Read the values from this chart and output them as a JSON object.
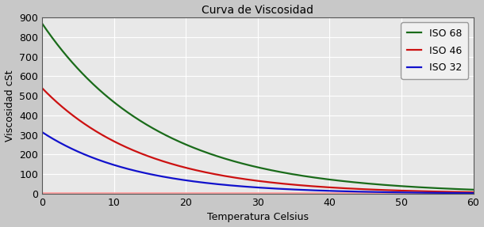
{
  "title": "Curva de Viscosidad",
  "xlabel": "Temperatura Celsius",
  "ylabel": "Viscosidad cSt",
  "xlim": [
    0,
    60
  ],
  "ylim": [
    0,
    900
  ],
  "xticks": [
    0,
    10,
    20,
    30,
    40,
    50,
    60
  ],
  "yticks": [
    0,
    100,
    200,
    300,
    400,
    500,
    600,
    700,
    800,
    900
  ],
  "series": [
    {
      "label": "ISO 68",
      "color": "#1a6b1a",
      "v0": 870,
      "k": 0.062
    },
    {
      "label": "ISO 46",
      "color": "#cc1111",
      "v0": 540,
      "k": 0.07
    },
    {
      "label": "ISO 32",
      "color": "#1111cc",
      "v0": 315,
      "k": 0.076
    }
  ],
  "pink_line_y": 6,
  "pink_line_color": "#ff9999",
  "plot_bg_color": "#e8e8e8",
  "fig_bg_color": "#c8c8c8",
  "grid_color": "#ffffff",
  "title_fontsize": 10,
  "label_fontsize": 9,
  "tick_fontsize": 9,
  "legend_fontsize": 9,
  "line_width": 1.6
}
